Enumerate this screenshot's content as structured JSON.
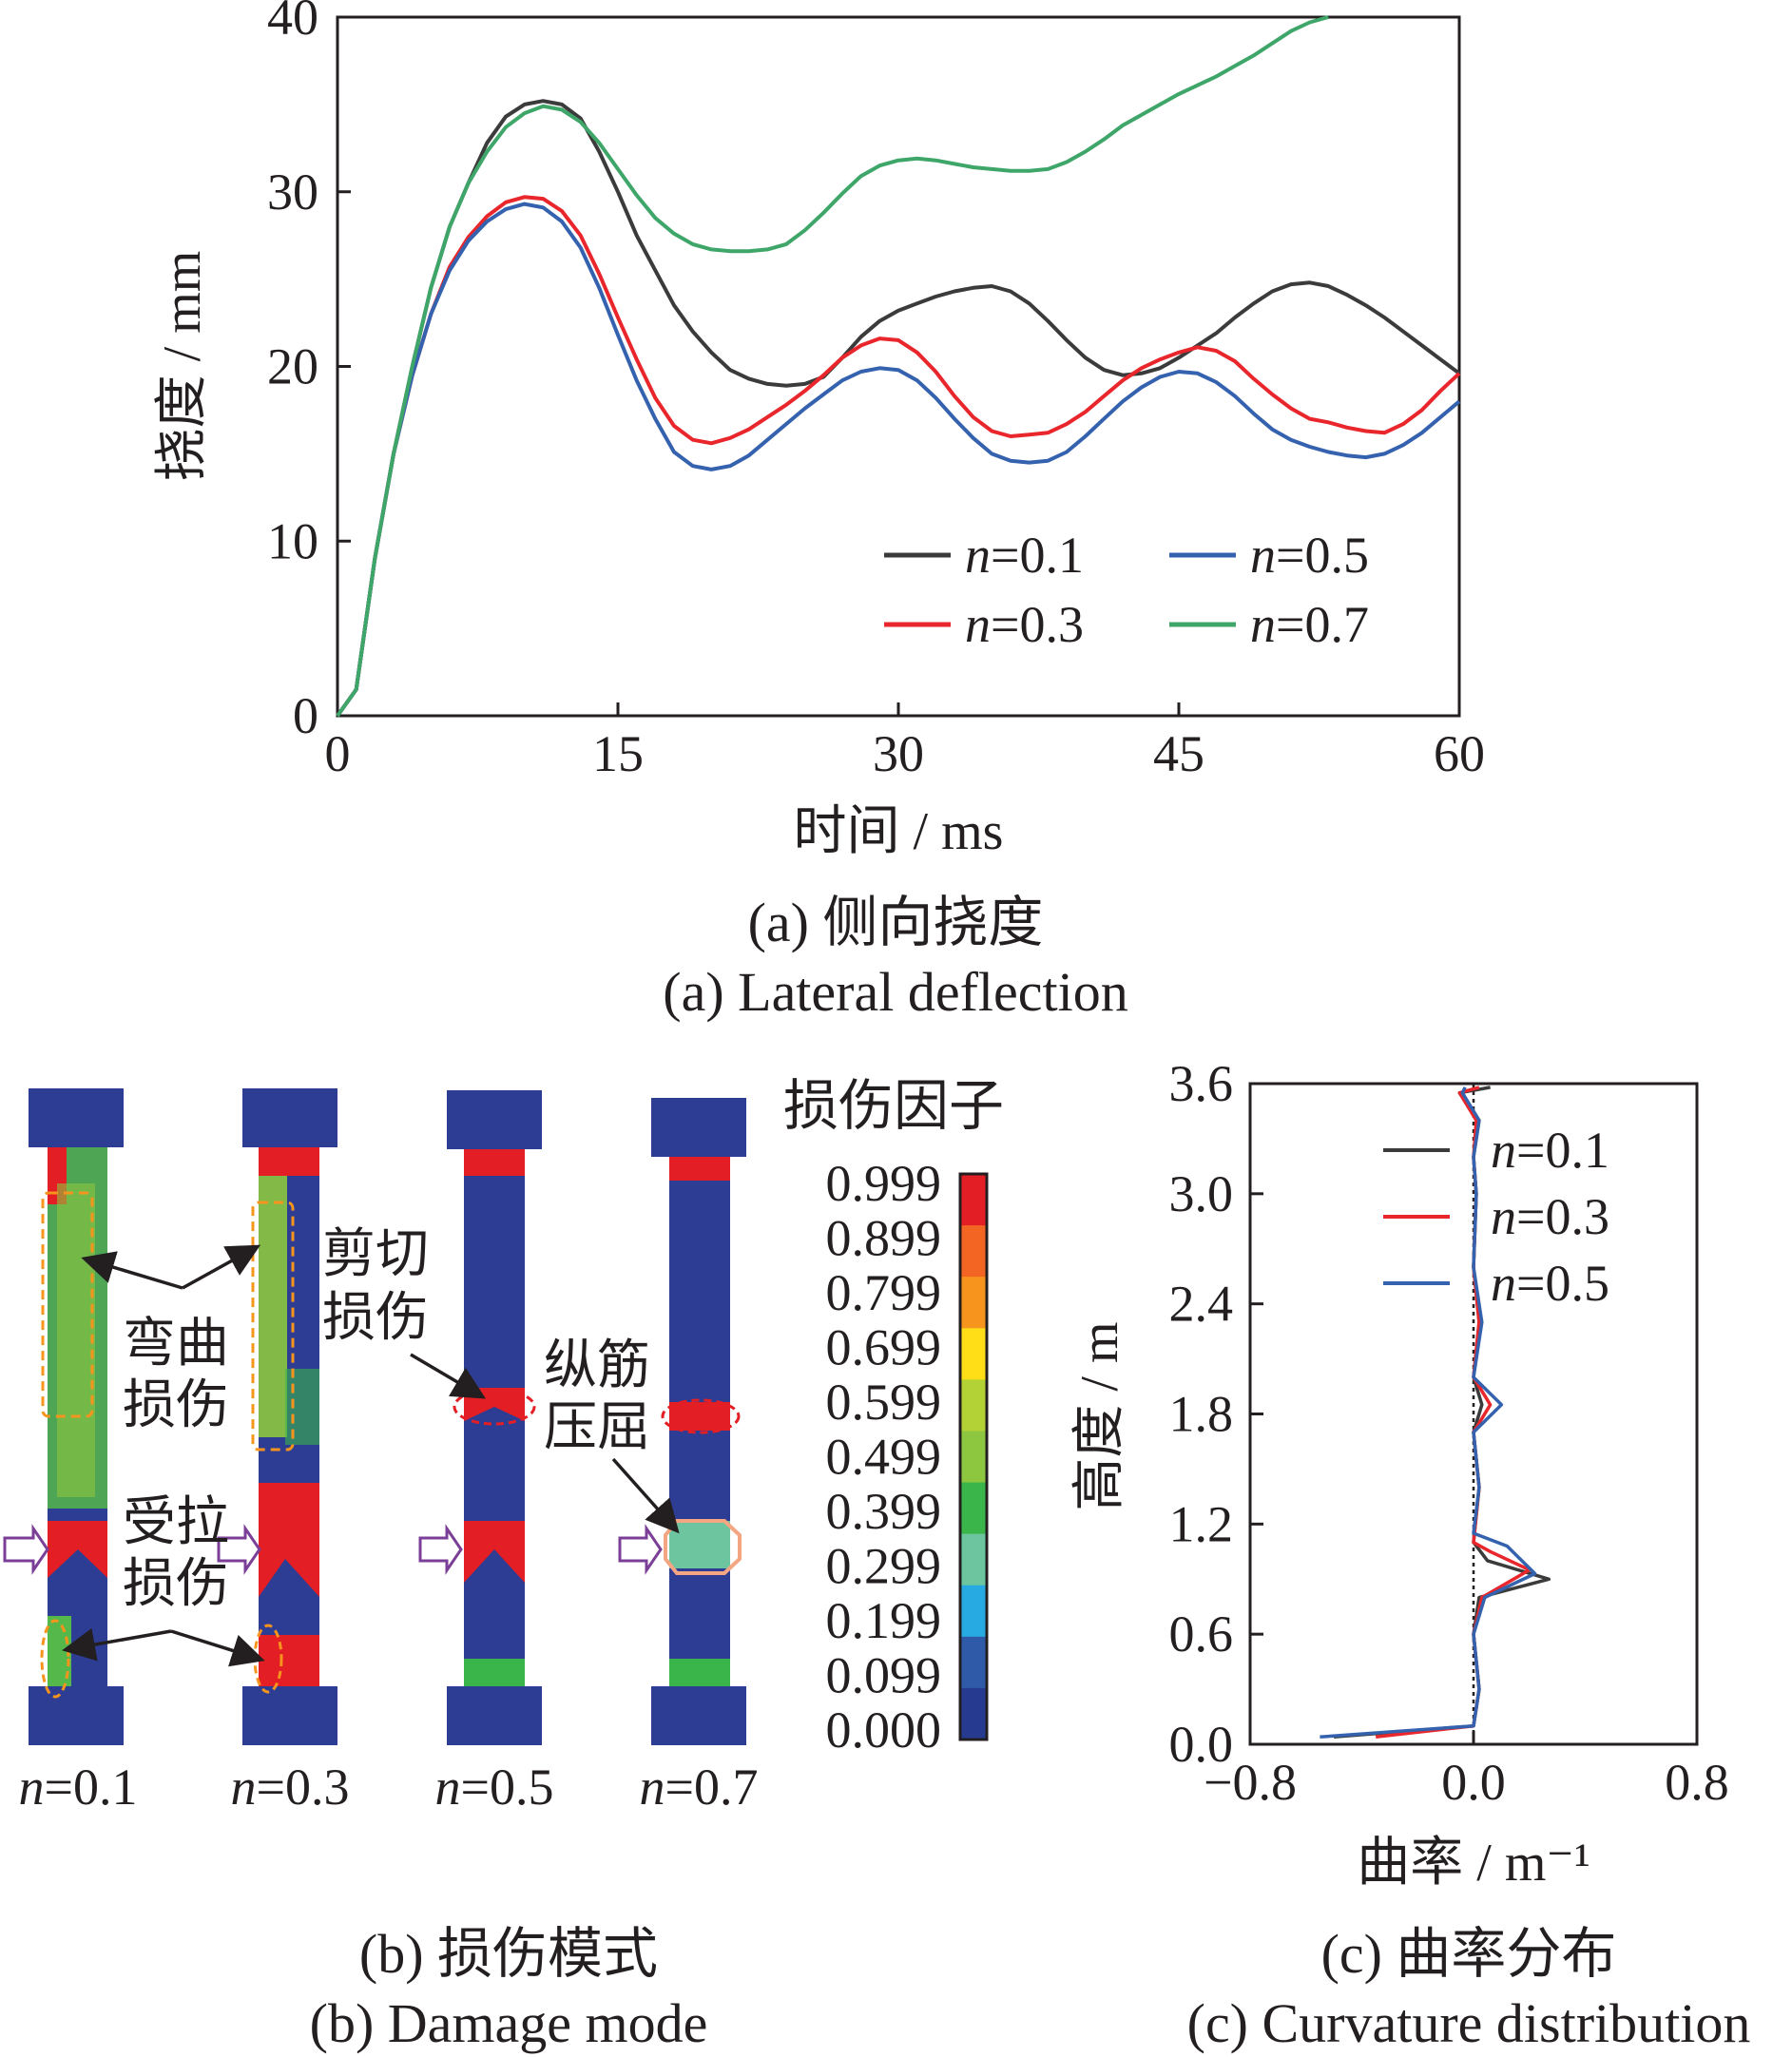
{
  "chart_data": [
    {
      "type": "line",
      "title": "",
      "xlabel": "时间 / ms",
      "ylabel": "挠度 / mm",
      "xlim": [
        0,
        60
      ],
      "ylim": [
        0,
        40
      ],
      "xticks": [
        "0",
        "15",
        "30",
        "45",
        "60"
      ],
      "yticks": [
        "0",
        "10",
        "20",
        "30",
        "40"
      ],
      "grid": false,
      "legend_placement": "bottom-right",
      "caption_cn": "(a) 侧向挠度",
      "caption_en": "(a) Lateral deflection",
      "series": [
        {
          "name": "n=0.1",
          "color": "#3b3b3b",
          "x": [
            0,
            1,
            2,
            3,
            4,
            5,
            6,
            7,
            8,
            9,
            10,
            11,
            12,
            13,
            14,
            15,
            16,
            17,
            18,
            19,
            20,
            21,
            22,
            23,
            24,
            25,
            26,
            27,
            28,
            29,
            30,
            31,
            32,
            33,
            34,
            35,
            36,
            37,
            38,
            39,
            40,
            41,
            42,
            43,
            44,
            45,
            46,
            47,
            48,
            49,
            50,
            51,
            52,
            53,
            54,
            55,
            56,
            57,
            58,
            59,
            60
          ],
          "y": [
            0,
            1.5,
            9,
            15,
            20,
            24.5,
            28,
            30.5,
            32.8,
            34.3,
            35,
            35.2,
            35,
            34.2,
            32.3,
            30,
            27.5,
            25.5,
            23.5,
            22,
            20.8,
            19.8,
            19.3,
            19,
            18.9,
            19,
            19.4,
            20.5,
            21.7,
            22.6,
            23.2,
            23.6,
            24,
            24.3,
            24.5,
            24.6,
            24.3,
            23.6,
            22.6,
            21.5,
            20.5,
            19.8,
            19.5,
            19.6,
            19.9,
            20.5,
            21.2,
            21.9,
            22.8,
            23.6,
            24.3,
            24.7,
            24.8,
            24.6,
            24.1,
            23.5,
            22.8,
            22,
            21.2,
            20.4,
            19.6
          ]
        },
        {
          "name": "n=0.3",
          "color": "#e8262b",
          "x": [
            0,
            1,
            2,
            3,
            4,
            5,
            6,
            7,
            8,
            9,
            10,
            11,
            12,
            13,
            14,
            15,
            16,
            17,
            18,
            19,
            20,
            21,
            22,
            23,
            24,
            25,
            26,
            27,
            28,
            29,
            30,
            31,
            32,
            33,
            34,
            35,
            36,
            37,
            38,
            39,
            40,
            41,
            42,
            43,
            44,
            45,
            46,
            47,
            48,
            49,
            50,
            51,
            52,
            53,
            54,
            55,
            56,
            57,
            58,
            59,
            60
          ],
          "y": [
            0,
            1.5,
            9,
            15,
            19.5,
            23,
            25.7,
            27.4,
            28.6,
            29.4,
            29.7,
            29.6,
            28.9,
            27.5,
            25.3,
            22.8,
            20.4,
            18.2,
            16.6,
            15.8,
            15.6,
            15.9,
            16.4,
            17.1,
            17.8,
            18.6,
            19.5,
            20.5,
            21.2,
            21.6,
            21.5,
            20.8,
            19.7,
            18.3,
            17.1,
            16.3,
            16,
            16.1,
            16.2,
            16.7,
            17.4,
            18.3,
            19.2,
            19.9,
            20.4,
            20.8,
            21.1,
            20.9,
            20.3,
            19.3,
            18.4,
            17.6,
            17,
            16.8,
            16.5,
            16.3,
            16.2,
            16.7,
            17.5,
            18.6,
            19.6
          ]
        },
        {
          "name": "n=0.5",
          "color": "#3562ae",
          "x": [
            0,
            1,
            2,
            3,
            4,
            5,
            6,
            7,
            8,
            9,
            10,
            11,
            12,
            13,
            14,
            15,
            16,
            17,
            18,
            19,
            20,
            21,
            22,
            23,
            24,
            25,
            26,
            27,
            28,
            29,
            30,
            31,
            32,
            33,
            34,
            35,
            36,
            37,
            38,
            39,
            40,
            41,
            42,
            43,
            44,
            45,
            46,
            47,
            48,
            49,
            50,
            51,
            52,
            53,
            54,
            55,
            56,
            57,
            58,
            59,
            60
          ],
          "y": [
            0,
            1.5,
            9,
            15,
            19.5,
            23,
            25.5,
            27.2,
            28.3,
            29,
            29.3,
            29.1,
            28.3,
            26.8,
            24.5,
            21.8,
            19.2,
            17,
            15.1,
            14.3,
            14.1,
            14.3,
            14.9,
            15.8,
            16.7,
            17.6,
            18.4,
            19.2,
            19.7,
            19.9,
            19.8,
            19.2,
            18.2,
            17,
            15.9,
            15,
            14.6,
            14.5,
            14.6,
            15.1,
            16,
            17,
            18,
            18.8,
            19.4,
            19.7,
            19.6,
            19.1,
            18.3,
            17.3,
            16.4,
            15.8,
            15.4,
            15.1,
            14.9,
            14.8,
            15,
            15.5,
            16.2,
            17.1,
            18
          ]
        },
        {
          "name": "n=0.7",
          "color": "#3fa66a",
          "x": [
            0,
            1,
            2,
            3,
            4,
            5,
            6,
            7,
            8,
            9,
            10,
            11,
            12,
            13,
            14,
            15,
            16,
            17,
            18,
            19,
            20,
            21,
            22,
            23,
            24,
            25,
            26,
            27,
            28,
            29,
            30,
            31,
            32,
            33,
            34,
            35,
            36,
            37,
            38,
            39,
            40,
            41,
            42,
            43,
            44,
            45,
            46,
            47,
            48,
            49,
            50,
            51,
            52,
            53
          ],
          "y": [
            0,
            1.5,
            9,
            15,
            20,
            24.5,
            28,
            30.5,
            32.3,
            33.7,
            34.5,
            34.9,
            34.7,
            34,
            32.8,
            31.3,
            29.8,
            28.5,
            27.6,
            27,
            26.7,
            26.6,
            26.6,
            26.7,
            27,
            27.8,
            28.8,
            29.9,
            30.9,
            31.5,
            31.8,
            31.9,
            31.8,
            31.6,
            31.4,
            31.3,
            31.2,
            31.2,
            31.3,
            31.7,
            32.3,
            33,
            33.8,
            34.4,
            35,
            35.6,
            36.1,
            36.6,
            37.2,
            37.8,
            38.5,
            39.2,
            39.7,
            40
          ]
        }
      ]
    },
    {
      "type": "heatmap",
      "title": "损伤因子",
      "colorbar_labels": [
        "0.999",
        "0.899",
        "0.799",
        "0.699",
        "0.599",
        "0.499",
        "0.399",
        "0.299",
        "0.199",
        "0.099",
        "0.000"
      ],
      "colorbar_colors": [
        "#e31e24",
        "#f26522",
        "#f7941d",
        "#ffde17",
        "#b2d235",
        "#8dc63f",
        "#39b54a",
        "#6dc5a0",
        "#27aae1",
        "#2e5aa8",
        "#263a8f"
      ],
      "column_labels": [
        "n=0.1",
        "n=0.3",
        "n=0.5",
        "n=0.7"
      ],
      "annotations": [
        "弯曲损伤",
        "受拉损伤",
        "剪切损伤",
        "纵筋压屈"
      ],
      "caption_cn": "(b) 损伤模式",
      "caption_en": "(b) Damage mode"
    },
    {
      "type": "line",
      "title": "",
      "xlabel": "曲率 / m⁻¹",
      "ylabel": "高度 / m",
      "xlim": [
        -0.8,
        0.8
      ],
      "ylim": [
        0,
        3.6
      ],
      "xticks": [
        "−0.8",
        "0.0",
        "0.8"
      ],
      "yticks": [
        "0.0",
        "0.6",
        "1.2",
        "1.8",
        "2.4",
        "3.0",
        "3.6"
      ],
      "grid": false,
      "legend_placement": "top-right",
      "caption_cn": "(c) 曲率分布",
      "caption_en": "(c) Curvature distribution",
      "series": [
        {
          "name": "n=0.1",
          "color": "#3b3b3b",
          "x": [
            -0.5,
            0.0,
            0.02,
            0.0,
            0.02,
            0.27,
            0.05,
            0.0,
            0.02,
            0.0,
            0.03,
            0.0,
            0.02,
            0.0,
            0.01,
            0.0,
            0.02,
            -0.05,
            0.06
          ],
          "y": [
            0.04,
            0.1,
            0.3,
            0.6,
            0.8,
            0.9,
            1.0,
            1.1,
            1.4,
            1.7,
            1.85,
            2.0,
            2.3,
            2.6,
            3.0,
            3.2,
            3.4,
            3.55,
            3.58
          ]
        },
        {
          "name": "n=0.3",
          "color": "#e8262b",
          "x": [
            -0.35,
            0.0,
            0.02,
            0.0,
            0.03,
            0.2,
            0.06,
            0.0,
            0.02,
            0.0,
            0.06,
            0.0,
            0.02,
            0.0,
            0.01,
            0.0,
            0.01,
            -0.05,
            0.02
          ],
          "y": [
            0.04,
            0.1,
            0.3,
            0.6,
            0.8,
            0.95,
            1.05,
            1.1,
            1.4,
            1.7,
            1.85,
            2.0,
            2.3,
            2.6,
            3.0,
            3.2,
            3.4,
            3.55,
            3.58
          ]
        },
        {
          "name": "n=0.5",
          "color": "#3562ae",
          "x": [
            -0.55,
            0.0,
            0.02,
            0.0,
            0.04,
            0.22,
            0.12,
            0.0,
            0.02,
            0.0,
            0.1,
            0.0,
            0.03,
            0.0,
            0.01,
            0.0,
            0.02,
            -0.04,
            -0.03
          ],
          "y": [
            0.04,
            0.1,
            0.3,
            0.6,
            0.8,
            0.93,
            1.08,
            1.15,
            1.4,
            1.7,
            1.85,
            2.0,
            2.3,
            2.6,
            3.0,
            3.2,
            3.4,
            3.55,
            3.58
          ]
        }
      ]
    }
  ],
  "legend_a": [
    {
      "label": "n",
      "value": "=0.1",
      "color": "#3b3b3b"
    },
    {
      "label": "n",
      "value": "=0.5",
      "color": "#3562ae"
    },
    {
      "label": "n",
      "value": "=0.3",
      "color": "#e8262b"
    },
    {
      "label": "n",
      "value": "=0.7",
      "color": "#3fa66a"
    }
  ],
  "legend_c": [
    {
      "label": "n",
      "value": "=0.1",
      "color": "#3b3b3b"
    },
    {
      "label": "n",
      "value": "=0.3",
      "color": "#e8262b"
    },
    {
      "label": "n",
      "value": "=0.5",
      "color": "#3562ae"
    }
  ],
  "labels_b": {
    "bend1": "弯曲",
    "bend2": "损伤",
    "tension1": "受拉",
    "tension2": "损伤",
    "shear1": "剪切",
    "shear2": "损伤",
    "buckle1": "纵筋",
    "buckle2": "压屈",
    "col_n": "n",
    "col_vals": [
      "=0.1",
      "=0.3",
      "=0.5",
      "=0.7"
    ]
  }
}
